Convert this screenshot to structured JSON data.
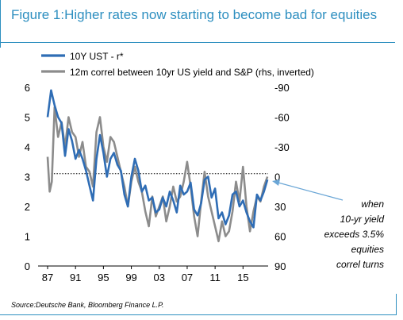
{
  "figure": {
    "title": "Figure 1:Higher rates now starting to become bad for equities",
    "source": "Source:Deutsche Bank, Bloomberg Finance L.P."
  },
  "annotation": {
    "lines": [
      "when",
      "10-yr  yield",
      "exceeds  3.5%",
      "equities",
      "correl turns"
    ]
  },
  "colors": {
    "title": "#2e8fc0",
    "series_left": "#2f6db5",
    "series_right": "#8c8c8c",
    "arrow": "#6aa6d6",
    "threshold": "#000000"
  },
  "chart_data": {
    "type": "line",
    "title": "Figure 1:Higher rates now starting to become bad for equities",
    "x_ticks": [
      "87",
      "91",
      "95",
      "99",
      "03",
      "07",
      "11",
      "15"
    ],
    "x_range": [
      1987,
      2018.6
    ],
    "ylim_left": [
      0,
      6
    ],
    "yticks_left": [
      0,
      1,
      2,
      3,
      4,
      5,
      6
    ],
    "ylim_right": [
      90,
      -90
    ],
    "yticks_right": [
      90,
      60,
      30,
      0,
      -30,
      -60,
      -90
    ],
    "threshold_left": 3.1,
    "legend_placement": "top-left",
    "series": [
      {
        "name": "10Y UST - r*",
        "axis": "left",
        "color": "#2f6db5",
        "x": [
          1987.0,
          1987.5,
          1988.0,
          1988.5,
          1989.0,
          1989.5,
          1990.0,
          1990.5,
          1991.0,
          1991.5,
          1992.0,
          1992.5,
          1993.0,
          1993.5,
          1994.0,
          1994.5,
          1995.0,
          1995.5,
          1996.0,
          1996.5,
          1997.0,
          1997.5,
          1998.0,
          1998.5,
          1999.0,
          1999.5,
          2000.0,
          2000.5,
          2001.0,
          2001.5,
          2002.0,
          2002.5,
          2003.0,
          2003.5,
          2004.0,
          2004.5,
          2005.0,
          2005.5,
          2006.0,
          2006.5,
          2007.0,
          2007.5,
          2008.0,
          2008.5,
          2009.0,
          2009.5,
          2010.0,
          2010.5,
          2011.0,
          2011.5,
          2012.0,
          2012.5,
          2013.0,
          2013.5,
          2014.0,
          2014.5,
          2015.0,
          2015.5,
          2016.0,
          2016.5,
          2017.0,
          2017.5,
          2018.0,
          2018.5
        ],
        "y": [
          5.0,
          5.9,
          5.4,
          5.0,
          4.8,
          3.7,
          4.6,
          4.2,
          3.6,
          3.9,
          3.6,
          3.2,
          2.7,
          2.2,
          3.6,
          4.4,
          3.8,
          3.0,
          3.6,
          3.8,
          3.4,
          3.2,
          2.4,
          2.0,
          3.0,
          3.6,
          3.2,
          2.5,
          2.7,
          2.2,
          2.3,
          1.8,
          1.9,
          2.3,
          2.0,
          2.5,
          2.2,
          1.8,
          2.7,
          2.4,
          2.5,
          2.8,
          1.9,
          1.7,
          2.1,
          2.9,
          3.0,
          2.3,
          2.6,
          1.6,
          1.8,
          1.4,
          1.7,
          2.4,
          2.5,
          2.0,
          2.2,
          1.8,
          1.5,
          1.3,
          2.4,
          2.2,
          2.5,
          2.9
        ]
      },
      {
        "name": "12m correl between 10yr US yield and S&P (rhs, inverted)",
        "axis": "right",
        "color": "#8c8c8c",
        "x": [
          1987.0,
          1987.3,
          1987.6,
          1988.0,
          1988.5,
          1989.0,
          1989.5,
          1990.0,
          1990.5,
          1991.0,
          1991.5,
          1992.0,
          1992.5,
          1993.0,
          1993.5,
          1994.0,
          1994.5,
          1995.0,
          1995.5,
          1996.0,
          1996.5,
          1997.0,
          1997.5,
          1998.0,
          1998.5,
          1999.0,
          1999.5,
          2000.0,
          2000.5,
          2001.0,
          2001.5,
          2002.0,
          2002.5,
          2003.0,
          2003.5,
          2004.0,
          2004.5,
          2005.0,
          2005.5,
          2006.0,
          2006.5,
          2007.0,
          2007.5,
          2008.0,
          2008.5,
          2009.0,
          2009.5,
          2010.0,
          2010.5,
          2011.0,
          2011.5,
          2012.0,
          2012.5,
          2013.0,
          2013.5,
          2014.0,
          2014.5,
          2015.0,
          2015.5,
          2016.0,
          2016.5,
          2017.0,
          2017.5,
          2018.0,
          2018.5
        ],
        "y": [
          -20,
          15,
          5,
          -70,
          -40,
          -55,
          -30,
          -60,
          -45,
          -40,
          -20,
          -35,
          -10,
          -5,
          10,
          -45,
          -60,
          -30,
          -15,
          -40,
          -35,
          -20,
          -5,
          10,
          30,
          5,
          -10,
          5,
          15,
          35,
          50,
          20,
          40,
          30,
          20,
          45,
          30,
          10,
          25,
          20,
          5,
          -15,
          10,
          40,
          60,
          25,
          -5,
          20,
          35,
          50,
          65,
          45,
          60,
          55,
          35,
          5,
          25,
          -10,
          30,
          55,
          35,
          20,
          25,
          10,
          0
        ]
      }
    ]
  }
}
